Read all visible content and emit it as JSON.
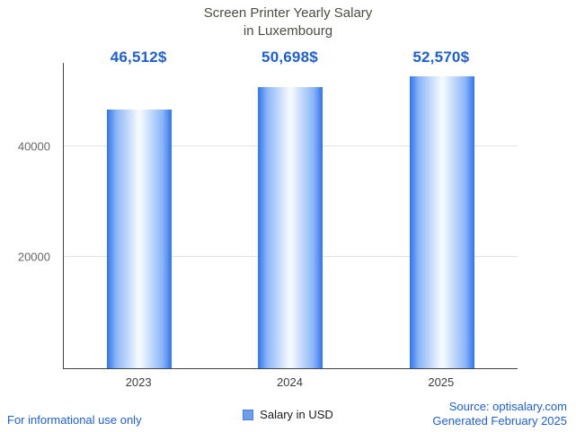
{
  "title": {
    "line1": "Screen Printer Yearly Salary",
    "line2": "in Luxembourg"
  },
  "chart_data": {
    "type": "bar",
    "title": "Screen Printer Yearly Salary in Luxembourg",
    "categories": [
      "2023",
      "2024",
      "2025"
    ],
    "values": [
      46512,
      50698,
      52570
    ],
    "value_labels": [
      "46,512$",
      "50,698$",
      "52,570$"
    ],
    "series_name": "Salary in USD",
    "xlabel": "",
    "ylabel": "",
    "ylim": [
      0,
      55000
    ],
    "yticks": [
      20000,
      40000
    ],
    "grid": true,
    "legend_position": "bottom",
    "bar_edge_color": "#2f74ee",
    "bar_center_color": "#f4f9ff"
  },
  "legend": {
    "label": "Salary in USD",
    "swatch_color": "#6d9eeb"
  },
  "footer": {
    "disclaimer": "For informational use only",
    "source": "Source: optisalary.com",
    "generated": "Generated February 2025"
  },
  "colors": {
    "value_label_blue": "#1d5fd6",
    "footer_blue": "#1d5fd6",
    "title_gray": "#4c4c44",
    "axis_color": "#424242",
    "gridline_color": "#e3e3e3"
  }
}
